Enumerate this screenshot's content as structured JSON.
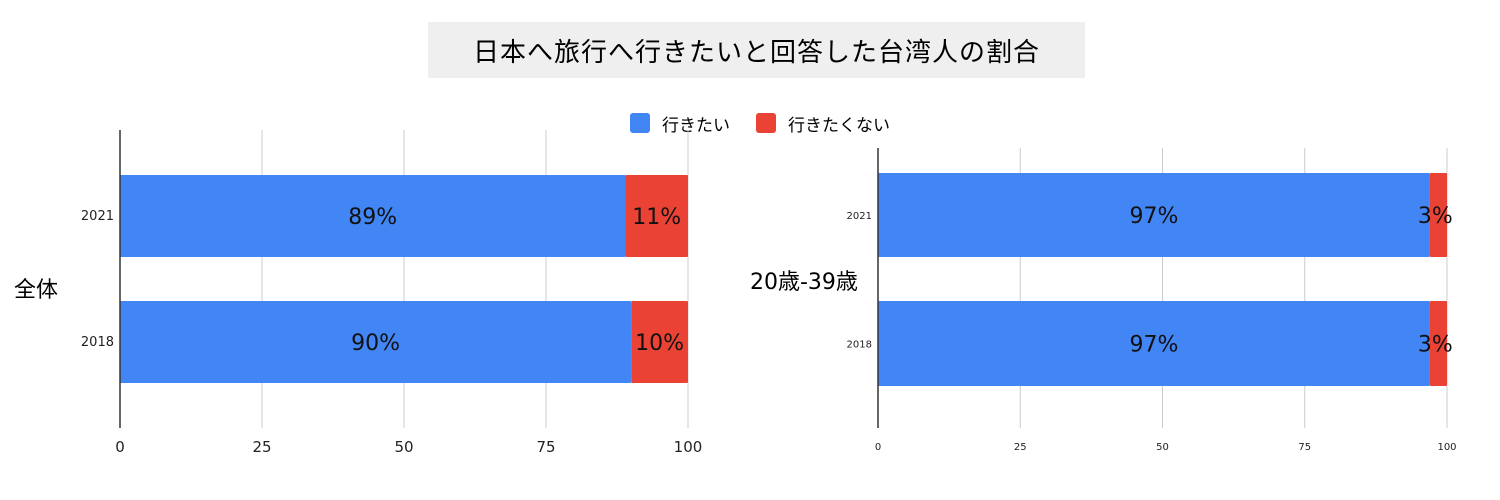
{
  "title": "日本へ旅行へ行きたいと回答した台湾人の割合",
  "legend": [
    {
      "label": "行きたい",
      "color": "#4285f4"
    },
    {
      "label": "行きたくない",
      "color": "#ea4335"
    }
  ],
  "groups": {
    "overall": "全体",
    "young": "20歳-39歳"
  },
  "chart_data": [
    {
      "type": "bar",
      "orientation": "horizontal",
      "stacked": true,
      "group": "全体",
      "categories": [
        "2021",
        "2018"
      ],
      "series": [
        {
          "name": "行きたい",
          "values": [
            89,
            90
          ],
          "labels": [
            "89%",
            "90%"
          ],
          "color": "#4285f4"
        },
        {
          "name": "行きたくない",
          "values": [
            11,
            10
          ],
          "labels": [
            "11%",
            "10%"
          ],
          "color": "#ea4335"
        }
      ],
      "xlim": [
        0,
        100
      ],
      "xticks": [
        "0",
        "25",
        "50",
        "75",
        "100"
      ],
      "grid": true
    },
    {
      "type": "bar",
      "orientation": "horizontal",
      "stacked": true,
      "group": "20歳-39歳",
      "categories": [
        "2021",
        "2018"
      ],
      "series": [
        {
          "name": "行きたい",
          "values": [
            97,
            97
          ],
          "labels": [
            "97%",
            "97%"
          ],
          "color": "#4285f4"
        },
        {
          "name": "行きたくない",
          "values": [
            3,
            3
          ],
          "labels": [
            "3%",
            "3%"
          ],
          "color": "#ea4335"
        }
      ],
      "xlim": [
        0,
        100
      ],
      "xticks": [
        "0",
        "25",
        "50",
        "75",
        "100"
      ],
      "grid": true
    }
  ]
}
